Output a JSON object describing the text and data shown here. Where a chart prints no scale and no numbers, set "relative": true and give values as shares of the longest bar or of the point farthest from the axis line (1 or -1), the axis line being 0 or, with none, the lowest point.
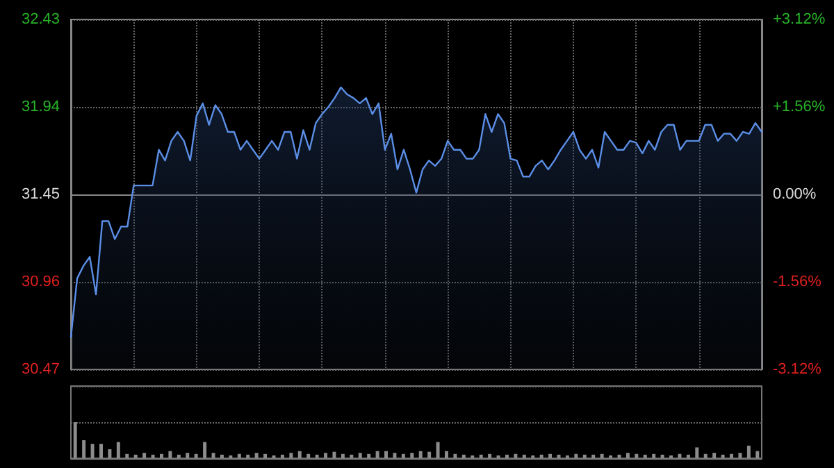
{
  "chart_data": [
    {
      "type": "area",
      "color": "#5b8ee6",
      "grid": true,
      "line_style": "solid",
      "tick_labels": "y",
      "categories": [
        null,
        null,
        null,
        null,
        null,
        null,
        null,
        null,
        null,
        null,
        null,
        null,
        null,
        null,
        null,
        null,
        null,
        null,
        null,
        null,
        null,
        null,
        null,
        null,
        null,
        null,
        null,
        null,
        null,
        null,
        null,
        null,
        null,
        null,
        null,
        null,
        null,
        null,
        null,
        null,
        null,
        null,
        null,
        null,
        null,
        null,
        null,
        null,
        null,
        null,
        null,
        null,
        null,
        null,
        null,
        null,
        null,
        null,
        null,
        null,
        null,
        null,
        null,
        null,
        null,
        null,
        null,
        null,
        null,
        null,
        null,
        null,
        null,
        null,
        null,
        null,
        null,
        null,
        null,
        null,
        null,
        null,
        null,
        null,
        null,
        null,
        null,
        null,
        null,
        null,
        null,
        null,
        null,
        null,
        null,
        null,
        null,
        null,
        null,
        null,
        null,
        null,
        null,
        null,
        null,
        null,
        null,
        null,
        null,
        null,
        null
      ],
      "ylim": [
        30.47,
        32.43
      ],
      "yticks": [
        30.47,
        30.96,
        31.45,
        31.94,
        32.43
      ],
      "y2lim": [
        -3.12,
        3.12
      ],
      "y2ticks": [
        {
          "value": -3.12,
          "label": "-3.12%"
        },
        {
          "value": -1.56,
          "label": "-1.56%"
        },
        {
          "value": 0,
          "label": "0.00%"
        },
        {
          "value": 1.56,
          "label": "+1.56%"
        },
        {
          "value": 3.12,
          "label": "+3.12%"
        }
      ],
      "values": [
        30.65,
        30.98,
        31.05,
        31.1,
        30.89,
        31.3,
        31.3,
        31.2,
        31.27,
        31.27,
        31.5,
        31.5,
        31.5,
        31.5,
        31.7,
        31.64,
        31.75,
        31.8,
        31.75,
        31.64,
        31.89,
        31.96,
        31.84,
        31.95,
        31.9,
        31.8,
        31.8,
        31.7,
        31.75,
        31.7,
        31.65,
        31.7,
        31.75,
        31.7,
        31.8,
        31.8,
        31.65,
        31.81,
        31.7,
        31.85,
        31.9,
        31.94,
        31.99,
        32.05,
        32.01,
        31.99,
        31.96,
        31.99,
        31.9,
        31.96,
        31.7,
        31.79,
        31.59,
        31.7,
        31.59,
        31.46,
        31.59,
        31.64,
        31.61,
        31.65,
        31.75,
        31.7,
        31.7,
        31.65,
        31.65,
        31.7,
        31.9,
        31.8,
        31.9,
        31.85,
        31.65,
        31.64,
        31.55,
        31.55,
        31.61,
        31.64,
        31.59,
        31.64,
        31.7,
        31.75,
        31.8,
        31.7,
        31.65,
        31.7,
        31.6,
        31.8,
        31.75,
        31.7,
        31.7,
        31.75,
        31.74,
        31.68,
        31.75,
        31.7,
        31.8,
        31.84,
        31.84,
        31.7,
        31.75,
        31.75,
        31.75,
        31.84,
        31.84,
        31.75,
        31.79,
        31.79,
        31.75,
        31.8,
        31.79,
        31.85,
        31.8
      ]
    },
    {
      "type": "bar",
      "relative": true,
      "color": "#8c8c8c",
      "grid": "y",
      "categories": [
        null,
        null,
        null,
        null,
        null,
        null,
        null,
        null,
        null,
        null,
        null,
        null,
        null,
        null,
        null,
        null,
        null,
        null,
        null,
        null,
        null,
        null,
        null,
        null,
        null,
        null,
        null,
        null,
        null,
        null,
        null,
        null,
        null,
        null,
        null,
        null,
        null,
        null,
        null,
        null,
        null,
        null,
        null,
        null,
        null,
        null,
        null,
        null,
        null,
        null,
        null,
        null,
        null,
        null,
        null,
        null,
        null,
        null,
        null,
        null,
        null,
        null,
        null,
        null,
        null,
        null,
        null,
        null,
        null,
        null,
        null,
        null,
        null,
        null,
        null,
        null,
        null,
        null,
        null,
        null
      ],
      "values": [
        1,
        0.5,
        0.4,
        0.4,
        0.25,
        0.45,
        0.12,
        0.1,
        0.15,
        0.1,
        0.12,
        0.2,
        0.1,
        0.15,
        0.12,
        0.45,
        0.15,
        0.1,
        0.08,
        0.12,
        0.1,
        0.15,
        0.12,
        0.08,
        0.1,
        0.15,
        0.2,
        0.12,
        0.1,
        0.15,
        0.18,
        0.12,
        0.1,
        0.15,
        0.12,
        0.2,
        0.2,
        0.15,
        0.12,
        0.15,
        0.2,
        0.18,
        0.45,
        0.2,
        0.12,
        0.1,
        0.08,
        0.1,
        0.12,
        0.08,
        0.1,
        0.12,
        0.1,
        0.08,
        0.1,
        0.12,
        0.1,
        0.08,
        0.12,
        0.1,
        0.1,
        0.12,
        0.08,
        0.1,
        0.15,
        0.12,
        0.1,
        0.12,
        0.1,
        0.08,
        0.12,
        0.1,
        0.3,
        0.12,
        0.15,
        0.1,
        0.12,
        0.15,
        0.35,
        0.2
      ]
    }
  ]
}
